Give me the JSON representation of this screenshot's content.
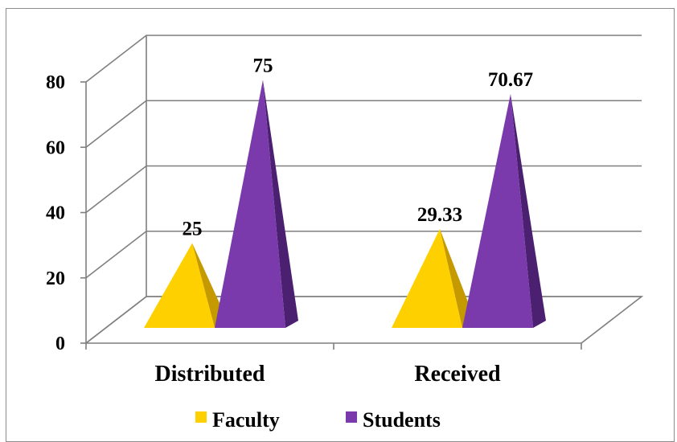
{
  "chart_data": {
    "type": "bar",
    "style": "3d-pyramid",
    "categories": [
      "Distributed",
      "Received"
    ],
    "series": [
      {
        "name": "Faculty",
        "values": [
          25,
          29.33
        ],
        "color": "#FFD000",
        "side_color": "#C49A00"
      },
      {
        "name": "Students",
        "values": [
          75,
          70.67
        ],
        "color": "#7A3AAC",
        "side_color": "#4C2070"
      }
    ],
    "data_labels": [
      [
        "25",
        "29.33"
      ],
      [
        "75",
        "70.67"
      ]
    ],
    "ylim": [
      0,
      80
    ],
    "yticks": [
      "0",
      "20",
      "40",
      "60",
      "80"
    ],
    "grid": true,
    "legend_position": "bottom"
  }
}
